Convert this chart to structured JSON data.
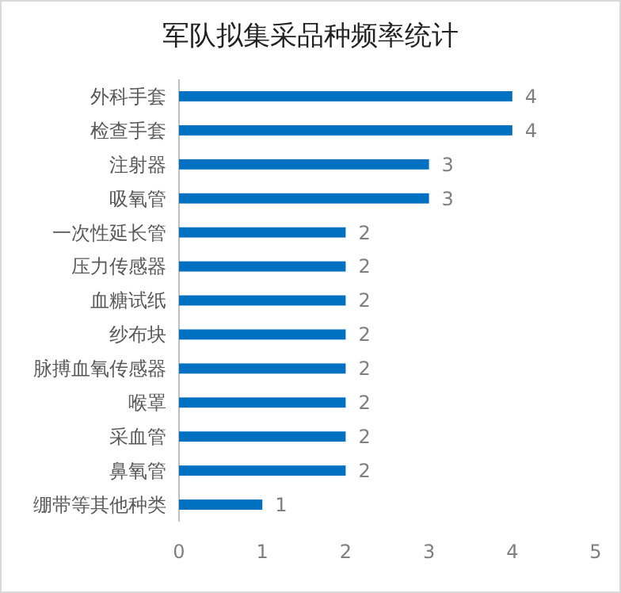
{
  "chart_data": {
    "type": "bar",
    "orientation": "horizontal",
    "title": "军队拟集采品种频率统计",
    "categories": [
      "外科手套",
      "检查手套",
      "注射器",
      "吸氧管",
      "一次性延长管",
      "压力传感器",
      "血糖试纸",
      "纱布块",
      "脉搏血氧传感器",
      "喉罩",
      "采血管",
      "鼻氧管",
      "绷带等其他种类"
    ],
    "values": [
      4,
      4,
      3,
      3,
      2,
      2,
      2,
      2,
      2,
      2,
      2,
      2,
      1
    ],
    "color": "#0070c0",
    "xlim": [
      0,
      5
    ],
    "xticks": [
      0,
      1,
      2,
      3,
      4,
      5
    ],
    "grid": false,
    "data_labels": true
  }
}
